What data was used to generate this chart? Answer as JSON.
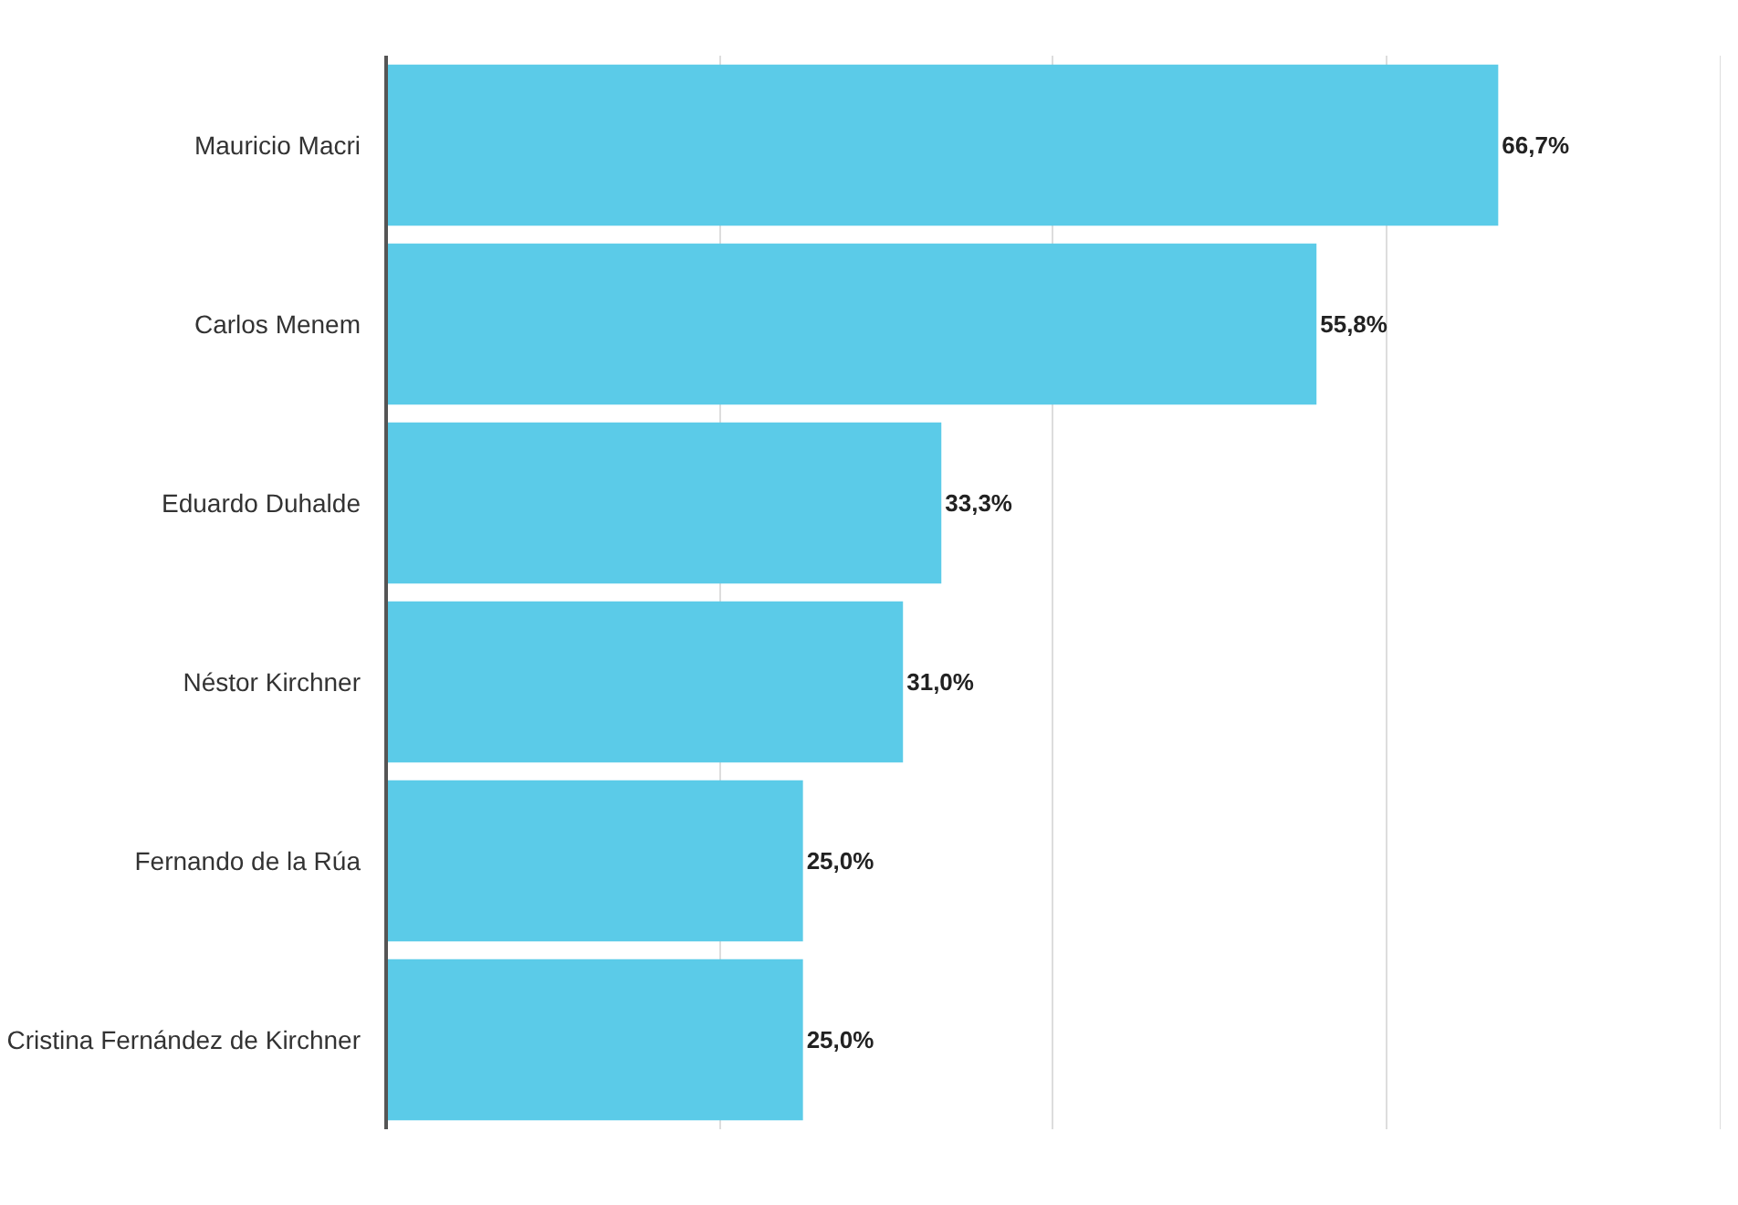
{
  "chart_data": {
    "type": "bar",
    "orientation": "horizontal",
    "categories": [
      "Mauricio Macri",
      "Carlos Menem",
      "Eduardo Duhalde",
      "Néstor Kirchner",
      "Fernando de la Rúa",
      "Cristina Fernández de Kirchner"
    ],
    "values": [
      66.7,
      55.8,
      33.3,
      31.0,
      25.0,
      25.0
    ],
    "value_labels": [
      "66,7%",
      "55,8%",
      "33,3%",
      "31,0%",
      "25,0%",
      "25,0%"
    ],
    "color": "#5bcbe8",
    "grid": "x",
    "tick_labels": "y"
  }
}
